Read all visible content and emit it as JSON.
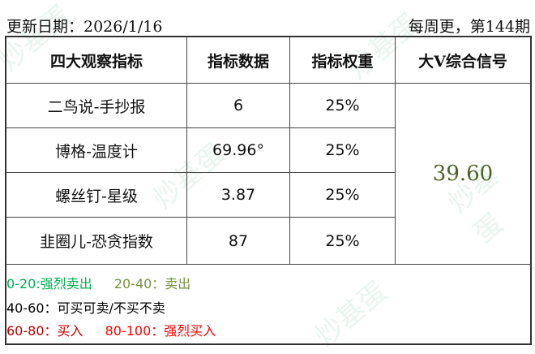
{
  "header": {
    "date": "更新日期：2026/1/16",
    "issue": "每周更，第144期"
  },
  "table": {
    "columns": [
      "四大观察指标",
      "指标数据",
      "指标权重",
      "大V综合信号"
    ],
    "rows": [
      {
        "name": "二鸟说-手抄报",
        "value": "6",
        "weight": "25%"
      },
      {
        "name": "博格-温度计",
        "value": "69.96°",
        "weight": "25%"
      },
      {
        "name": "螺丝钉-星级",
        "value": "3.87",
        "weight": "25%"
      },
      {
        "name": "韭圈儿-恐贪指数",
        "value": "87",
        "weight": "25%"
      }
    ],
    "signal": "39.60"
  },
  "legend": {
    "l1a": "0-20:强烈卖出",
    "l1b": "20-40：卖出",
    "l2": "40-60：可买可卖/不买不卖",
    "l3a": "60-80：买入",
    "l3b": "80-100：强烈买入"
  },
  "colors": {
    "strong_sell": "#00b050",
    "sell": "#76923c",
    "neutral": "#000000",
    "buy": "#c00000",
    "strong_buy": "#ff0000",
    "signal": "#4f6228"
  },
  "watermark": "炒基蛋"
}
